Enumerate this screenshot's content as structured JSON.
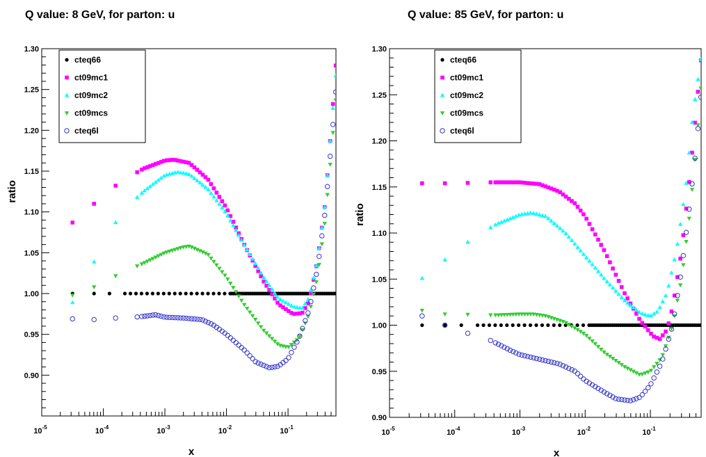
{
  "panels": [
    {
      "title": "Q value: 8 GeV,  for  parton: u"
    },
    {
      "title": "Q value: 85 GeV,  for  parton: u"
    }
  ],
  "chart_data": [
    {
      "type": "scatter",
      "title": "Q value: 8 GeV,  for  parton: u",
      "xlabel": "x",
      "ylabel": "ratio",
      "xscale": "log",
      "xlim": [
        1e-05,
        0.6
      ],
      "ylim": [
        0.85,
        1.3
      ],
      "xticks": [
        {
          "exp": "-5",
          "value": 1e-05
        },
        {
          "exp": "-4",
          "value": 0.0001
        },
        {
          "exp": "-3",
          "value": 0.001
        },
        {
          "exp": "-2",
          "value": 0.01
        },
        {
          "exp": "-1",
          "value": 0.1
        }
      ],
      "yticks": [
        "0.90",
        "0.95",
        "1.00",
        "1.05",
        "1.10",
        "1.15",
        "1.20",
        "1.25",
        "1.30"
      ],
      "legend_position": "top-left",
      "series": [
        {
          "name": "cteq66",
          "color": "#000000",
          "marker": "circle-filled",
          "points": [
            [
              3.16e-05,
              1.0
            ],
            [
              0.0001,
              1.0
            ],
            [
              0.001,
              1.0
            ],
            [
              0.01,
              1.0
            ],
            [
              0.1,
              1.0
            ],
            [
              0.6,
              1.0
            ]
          ]
        },
        {
          "name": "ct09mc1",
          "color": "#ff00ff",
          "marker": "square",
          "points": [
            [
              3.16e-05,
              1.087
            ],
            [
              7.08e-05,
              1.11
            ],
            [
              0.000126,
              1.127
            ],
            [
              0.000224,
              1.14
            ],
            [
              0.000447,
              1.153
            ],
            [
              0.001,
              1.163
            ],
            [
              0.0014,
              1.164
            ],
            [
              0.0025,
              1.16
            ],
            [
              0.005,
              1.14
            ],
            [
              0.01,
              1.105
            ],
            [
              0.02,
              1.058
            ],
            [
              0.04,
              1.015
            ],
            [
              0.07,
              0.987
            ],
            [
              0.12,
              0.975
            ],
            [
              0.17,
              0.976
            ],
            [
              0.22,
              0.99
            ],
            [
              0.3,
              1.04
            ],
            [
              0.4,
              1.11
            ],
            [
              0.5,
              1.2
            ],
            [
              0.6,
              1.283
            ]
          ]
        },
        {
          "name": "ct09mc2",
          "color": "#00ffff",
          "marker": "triangle-up",
          "points": [
            [
              3.16e-05,
              0.989
            ],
            [
              7.08e-05,
              1.039
            ],
            [
              0.000126,
              1.076
            ],
            [
              0.000224,
              1.104
            ],
            [
              0.000447,
              1.125
            ],
            [
              0.001,
              1.145
            ],
            [
              0.0016,
              1.149
            ],
            [
              0.0025,
              1.146
            ],
            [
              0.005,
              1.128
            ],
            [
              0.01,
              1.098
            ],
            [
              0.02,
              1.058
            ],
            [
              0.04,
              1.02
            ],
            [
              0.07,
              0.994
            ],
            [
              0.12,
              0.984
            ],
            [
              0.17,
              0.982
            ],
            [
              0.22,
              0.995
            ],
            [
              0.3,
              1.04
            ],
            [
              0.4,
              1.11
            ],
            [
              0.5,
              1.2
            ],
            [
              0.6,
              1.27
            ]
          ]
        },
        {
          "name": "ct09mcs",
          "color": "#33cc33",
          "marker": "triangle-down",
          "points": [
            [
              3.16e-05,
              0.998
            ],
            [
              7.08e-05,
              1.008
            ],
            [
              0.000126,
              1.018
            ],
            [
              0.000224,
              1.027
            ],
            [
              0.000447,
              1.037
            ],
            [
              0.001,
              1.05
            ],
            [
              0.002,
              1.057
            ],
            [
              0.0025,
              1.058
            ],
            [
              0.005,
              1.048
            ],
            [
              0.01,
              1.02
            ],
            [
              0.02,
              0.985
            ],
            [
              0.04,
              0.955
            ],
            [
              0.07,
              0.937
            ],
            [
              0.1,
              0.934
            ],
            [
              0.15,
              0.945
            ],
            [
              0.22,
              0.975
            ],
            [
              0.3,
              1.02
            ],
            [
              0.4,
              1.09
            ],
            [
              0.5,
              1.17
            ],
            [
              0.6,
              1.24
            ]
          ]
        },
        {
          "name": "cteq6l",
          "color": "#3333cc",
          "marker": "circle-open",
          "points": [
            [
              3.16e-05,
              0.969
            ],
            [
              7.08e-05,
              0.968
            ],
            [
              0.000126,
              0.97
            ],
            [
              0.000224,
              0.97
            ],
            [
              0.000447,
              0.972
            ],
            [
              0.0007,
              0.974
            ],
            [
              0.001,
              0.971
            ],
            [
              0.002,
              0.97
            ],
            [
              0.004,
              0.968
            ],
            [
              0.006,
              0.962
            ],
            [
              0.01,
              0.95
            ],
            [
              0.02,
              0.93
            ],
            [
              0.03,
              0.916
            ],
            [
              0.05,
              0.909
            ],
            [
              0.07,
              0.911
            ],
            [
              0.1,
              0.92
            ],
            [
              0.15,
              0.945
            ],
            [
              0.22,
              0.98
            ],
            [
              0.3,
              1.03
            ],
            [
              0.4,
              1.1
            ],
            [
              0.5,
              1.18
            ],
            [
              0.6,
              1.25
            ]
          ]
        }
      ]
    },
    {
      "type": "scatter",
      "title": "Q value: 85 GeV,  for  parton: u",
      "xlabel": "x",
      "ylabel": "ratio",
      "xscale": "log",
      "xlim": [
        1e-05,
        0.6
      ],
      "ylim": [
        0.9,
        1.3
      ],
      "xticks": [
        {
          "exp": "-5",
          "value": 1e-05
        },
        {
          "exp": "-4",
          "value": 0.0001
        },
        {
          "exp": "-3",
          "value": 0.001
        },
        {
          "exp": "-2",
          "value": 0.01
        },
        {
          "exp": "-1",
          "value": 0.1
        }
      ],
      "yticks": [
        "0.90",
        "0.95",
        "1.00",
        "1.05",
        "1.10",
        "1.15",
        "1.20",
        "1.25",
        "1.30"
      ],
      "legend_position": "top-left",
      "series": [
        {
          "name": "cteq66",
          "color": "#000000",
          "marker": "circle-filled",
          "points": [
            [
              3.16e-05,
              1.0
            ],
            [
              0.0001,
              1.0
            ],
            [
              0.001,
              1.0
            ],
            [
              0.01,
              1.0
            ],
            [
              0.1,
              1.0
            ],
            [
              0.6,
              1.0
            ]
          ]
        },
        {
          "name": "ct09mc1",
          "color": "#ff00ff",
          "marker": "square",
          "points": [
            [
              3.16e-05,
              1.154
            ],
            [
              0.0001,
              1.154
            ],
            [
              0.0003,
              1.155
            ],
            [
              0.001,
              1.155
            ],
            [
              0.002,
              1.153
            ],
            [
              0.004,
              1.145
            ],
            [
              0.007,
              1.132
            ],
            [
              0.01,
              1.118
            ],
            [
              0.02,
              1.08
            ],
            [
              0.04,
              1.035
            ],
            [
              0.07,
              1.005
            ],
            [
              0.11,
              0.988
            ],
            [
              0.14,
              0.985
            ],
            [
              0.18,
              0.995
            ],
            [
              0.22,
              1.02
            ],
            [
              0.3,
              1.08
            ],
            [
              0.4,
              1.16
            ],
            [
              0.5,
              1.23
            ],
            [
              0.6,
              1.29
            ]
          ]
        },
        {
          "name": "ct09mc2",
          "color": "#00ffff",
          "marker": "triangle-up",
          "points": [
            [
              3.16e-05,
              1.051
            ],
            [
              7.08e-05,
              1.071
            ],
            [
              0.000126,
              1.085
            ],
            [
              0.000224,
              1.098
            ],
            [
              0.000447,
              1.11
            ],
            [
              0.001,
              1.12
            ],
            [
              0.0015,
              1.122
            ],
            [
              0.0025,
              1.118
            ],
            [
              0.005,
              1.1
            ],
            [
              0.01,
              1.075
            ],
            [
              0.02,
              1.05
            ],
            [
              0.04,
              1.027
            ],
            [
              0.07,
              1.013
            ],
            [
              0.1,
              1.01
            ],
            [
              0.13,
              1.015
            ],
            [
              0.18,
              1.035
            ],
            [
              0.25,
              1.08
            ],
            [
              0.35,
              1.15
            ],
            [
              0.45,
              1.23
            ],
            [
              0.6,
              1.29
            ]
          ]
        },
        {
          "name": "ct09mcs",
          "color": "#33cc33",
          "marker": "triangle-down",
          "points": [
            [
              3.16e-05,
              1.016
            ],
            [
              7.08e-05,
              1.012
            ],
            [
              0.000126,
              1.012
            ],
            [
              0.000224,
              1.011
            ],
            [
              0.000447,
              1.011
            ],
            [
              0.001,
              1.012
            ],
            [
              0.0016,
              1.012
            ],
            [
              0.0025,
              1.01
            ],
            [
              0.005,
              1.003
            ],
            [
              0.01,
              0.99
            ],
            [
              0.02,
              0.97
            ],
            [
              0.04,
              0.955
            ],
            [
              0.07,
              0.946
            ],
            [
              0.1,
              0.95
            ],
            [
              0.15,
              0.965
            ],
            [
              0.22,
              1.0
            ],
            [
              0.3,
              1.05
            ],
            [
              0.4,
              1.12
            ],
            [
              0.5,
              1.19
            ],
            [
              0.6,
              1.26
            ]
          ]
        },
        {
          "name": "cteq6l",
          "color": "#3333cc",
          "marker": "circle-open",
          "points": [
            [
              3.16e-05,
              1.01
            ],
            [
              7.08e-05,
              1.0
            ],
            [
              0.000126,
              0.994
            ],
            [
              0.000224,
              0.987
            ],
            [
              0.00032,
              0.985
            ],
            [
              0.000447,
              0.98
            ],
            [
              0.0007,
              0.973
            ],
            [
              0.001,
              0.968
            ],
            [
              0.002,
              0.963
            ],
            [
              0.004,
              0.958
            ],
            [
              0.007,
              0.95
            ],
            [
              0.01,
              0.94
            ],
            [
              0.02,
              0.927
            ],
            [
              0.03,
              0.92
            ],
            [
              0.05,
              0.918
            ],
            [
              0.07,
              0.922
            ],
            [
              0.1,
              0.935
            ],
            [
              0.15,
              0.96
            ],
            [
              0.22,
              1.0
            ],
            [
              0.3,
              1.06
            ],
            [
              0.4,
              1.13
            ],
            [
              0.5,
              1.19
            ],
            [
              0.6,
              1.25
            ]
          ]
        }
      ]
    }
  ]
}
